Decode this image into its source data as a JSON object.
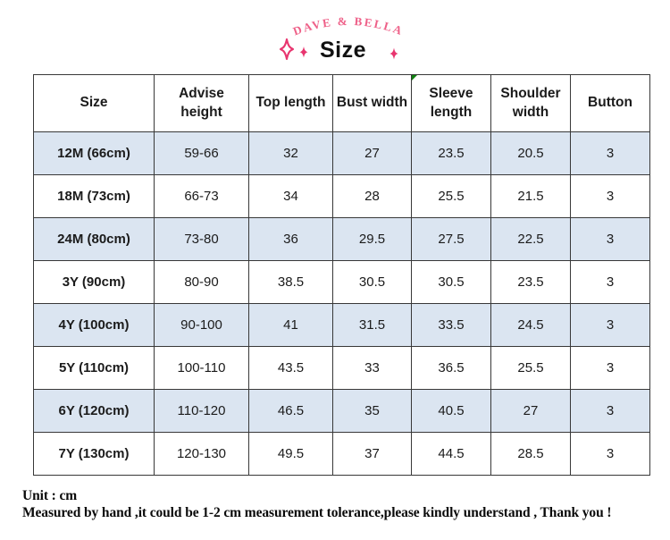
{
  "brand": {
    "name": "DAVE & BELLA"
  },
  "title": "Size",
  "table": {
    "headers": [
      "Size",
      "Advise height",
      "Top length",
      "Bust width",
      "Sleeve length",
      "Shoulder width",
      "Button"
    ],
    "rows": [
      [
        "12M (66cm)",
        "59-66",
        "32",
        "27",
        "23.5",
        "20.5",
        "3"
      ],
      [
        "18M (73cm)",
        "66-73",
        "34",
        "28",
        "25.5",
        "21.5",
        "3"
      ],
      [
        "24M (80cm)",
        "73-80",
        "36",
        "29.5",
        "27.5",
        "22.5",
        "3"
      ],
      [
        "3Y (90cm)",
        "80-90",
        "38.5",
        "30.5",
        "30.5",
        "23.5",
        "3"
      ],
      [
        "4Y (100cm)",
        "90-100",
        "41",
        "31.5",
        "33.5",
        "24.5",
        "3"
      ],
      [
        "5Y (110cm)",
        "100-110",
        "43.5",
        "33",
        "36.5",
        "25.5",
        "3"
      ],
      [
        "6Y (120cm)",
        "110-120",
        "46.5",
        "35",
        "40.5",
        "27",
        "3"
      ],
      [
        "7Y (130cm)",
        "120-130",
        "49.5",
        "37",
        "44.5",
        "28.5",
        "3"
      ]
    ]
  },
  "footer": {
    "unit": "Unit : cm",
    "note": "Measured by hand ,it could be 1-2 cm measurement tolerance,please kindly understand , Thank you !"
  },
  "icons": [
    "sparkle-icon",
    "sparkle-small-icon"
  ],
  "colors": {
    "brand_pink": "#ee6088",
    "sparkle_pink": "#e8356f",
    "row_blue": "#dbe5f1",
    "border_dark": "#383838",
    "marker_green": "#108010"
  },
  "chart_data": {
    "type": "table",
    "title": "Size",
    "unit": "cm",
    "columns": [
      "Size",
      "Advise height",
      "Top length",
      "Bust width",
      "Sleeve length",
      "Shoulder width",
      "Button"
    ],
    "rows": [
      [
        "12M (66cm)",
        "59-66",
        "32",
        "27",
        "23.5",
        "20.5",
        "3"
      ],
      [
        "18M (73cm)",
        "66-73",
        "34",
        "28",
        "25.5",
        "21.5",
        "3"
      ],
      [
        "24M (80cm)",
        "73-80",
        "36",
        "29.5",
        "27.5",
        "22.5",
        "3"
      ],
      [
        "3Y (90cm)",
        "80-90",
        "38.5",
        "30.5",
        "30.5",
        "23.5",
        "3"
      ],
      [
        "4Y (100cm)",
        "90-100",
        "41",
        "31.5",
        "33.5",
        "24.5",
        "3"
      ],
      [
        "5Y (110cm)",
        "100-110",
        "43.5",
        "33",
        "36.5",
        "25.5",
        "3"
      ],
      [
        "6Y (120cm)",
        "110-120",
        "46.5",
        "35",
        "40.5",
        "27",
        "3"
      ],
      [
        "7Y (130cm)",
        "120-130",
        "49.5",
        "37",
        "44.5",
        "28.5",
        "3"
      ]
    ]
  }
}
